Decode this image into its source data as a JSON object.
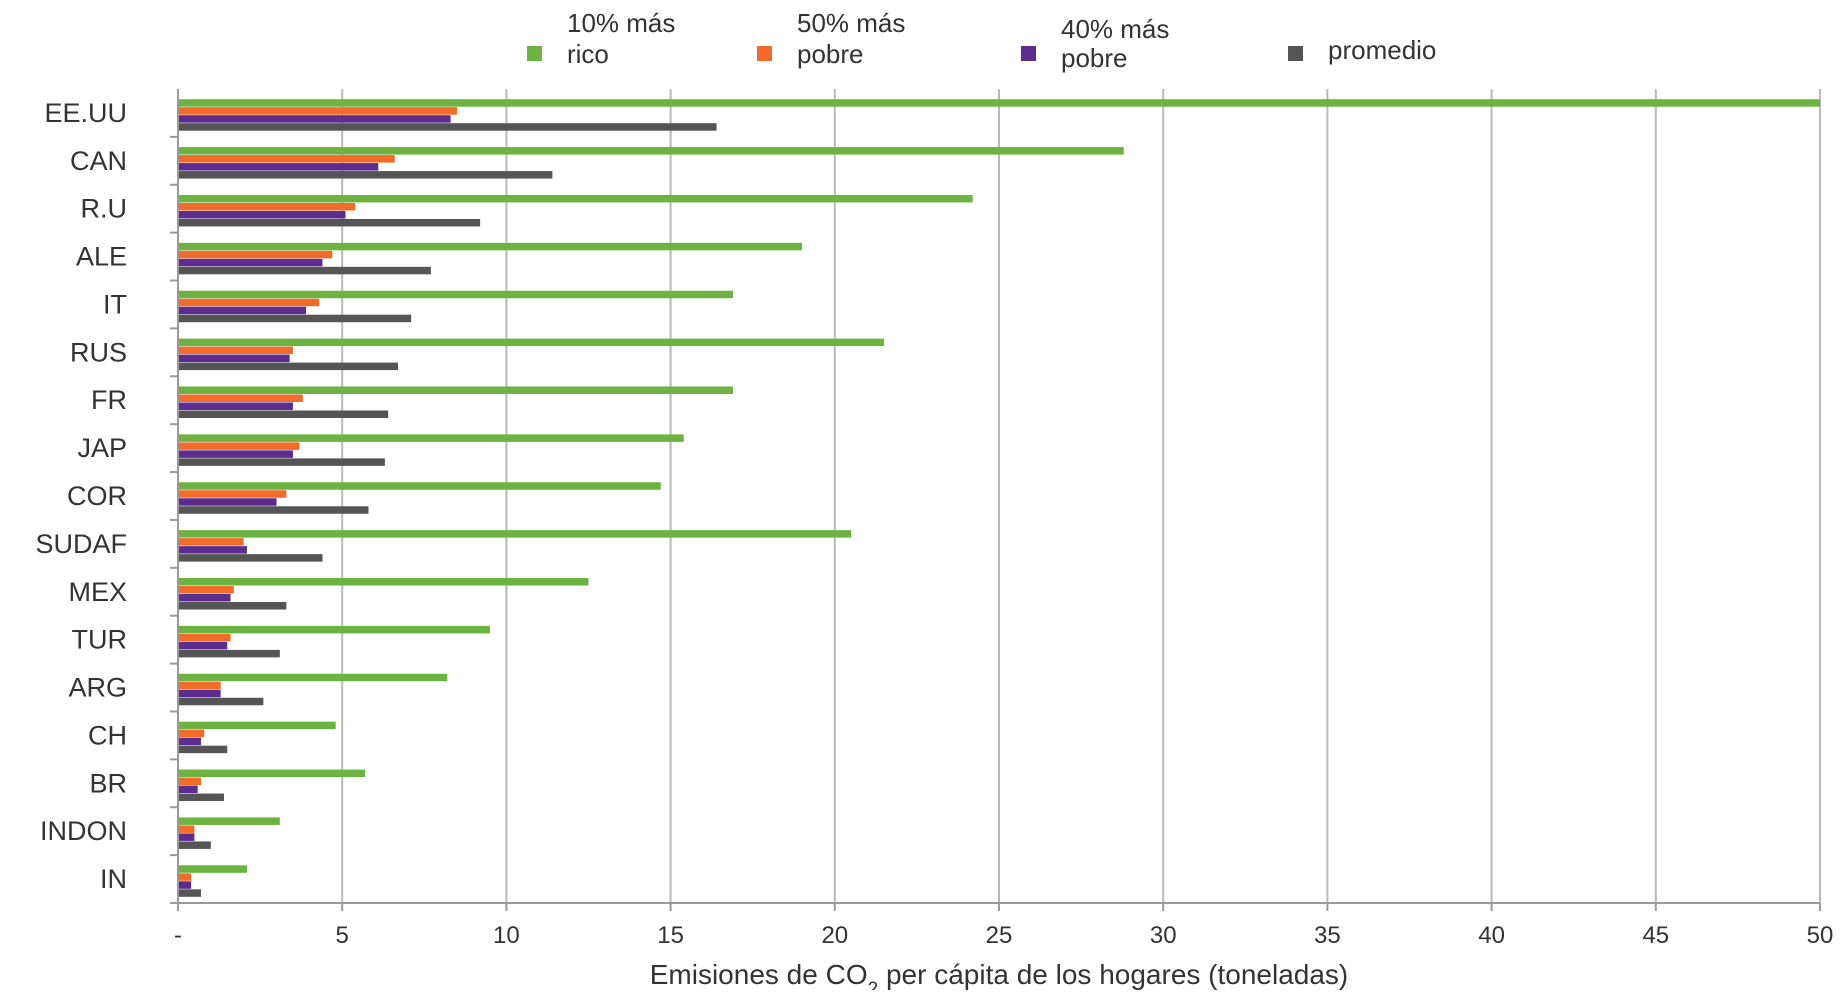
{
  "chart_data": {
    "type": "bar",
    "orientation": "horizontal",
    "categories": [
      "EE.UU",
      "CAN",
      "R.U",
      "ALE",
      "IT",
      "RUS",
      "FR",
      "JAP",
      "COR",
      "SUDAF",
      "MEX",
      "TUR",
      "ARG",
      "CH",
      "BR",
      "INDON",
      "IN"
    ],
    "series": [
      {
        "name_lines": [
          "10% más",
          "rico"
        ],
        "color": "#6db33f",
        "values": [
          50,
          28.8,
          24.2,
          19.0,
          16.9,
          21.5,
          16.9,
          15.4,
          14.7,
          20.5,
          12.5,
          9.5,
          8.2,
          4.8,
          5.7,
          3.1,
          2.1
        ]
      },
      {
        "name_lines": [
          "50% más",
          "pobre"
        ],
        "color": "#f26b2a",
        "values": [
          8.5,
          6.6,
          5.4,
          4.7,
          4.3,
          3.5,
          3.8,
          3.7,
          3.3,
          2.0,
          1.7,
          1.6,
          1.3,
          0.8,
          0.7,
          0.5,
          0.4
        ]
      },
      {
        "name_lines": [
          "40% más",
          "pobre"
        ],
        "color": "#5b2d8e",
        "values": [
          8.3,
          6.1,
          5.1,
          4.4,
          3.9,
          3.4,
          3.5,
          3.5,
          3.0,
          2.1,
          1.6,
          1.5,
          1.3,
          0.7,
          0.6,
          0.5,
          0.4
        ]
      },
      {
        "name_lines": [
          "promedio"
        ],
        "color": "#555555",
        "values": [
          16.4,
          11.4,
          9.2,
          7.7,
          7.1,
          6.7,
          6.4,
          6.3,
          5.8,
          4.4,
          3.3,
          3.1,
          2.6,
          1.5,
          1.4,
          1.0,
          0.7
        ]
      }
    ],
    "xlim": [
      0,
      50
    ],
    "x_ticks": [
      {
        "value": 0,
        "label": "-"
      },
      {
        "value": 5,
        "label": "5"
      },
      {
        "value": 10,
        "label": "10"
      },
      {
        "value": 15,
        "label": "15"
      },
      {
        "value": 20,
        "label": "20"
      },
      {
        "value": 25,
        "label": "25"
      },
      {
        "value": 30,
        "label": "30"
      },
      {
        "value": 35,
        "label": "35"
      },
      {
        "value": 40,
        "label": "40"
      },
      {
        "value": 45,
        "label": "45"
      },
      {
        "value": 50,
        "label": "50"
      }
    ],
    "xlabel_parts": [
      "Emisiones de CO",
      "2",
      " per cápita de los hogares (toneladas)"
    ],
    "grid": "vertical",
    "legend_position": "top"
  }
}
